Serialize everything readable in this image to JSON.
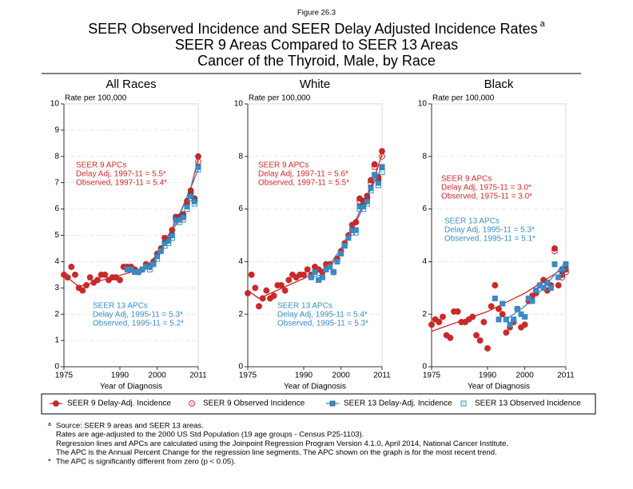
{
  "figure_label": "Figure 26.3",
  "title_lines": [
    "SEER Observed Incidence and SEER Delay Adjusted Incidence Rates",
    "SEER 9 Areas Compared to SEER 13 Areas",
    "Cancer of the Thyroid, Male, by Race"
  ],
  "title_mark": "a",
  "footnotes": [
    {
      "mark": "a",
      "lines": [
        "Source: SEER 9 areas and SEER 13 areas.",
        "Rates are age-adjusted to the 2000 US Std Population (19 age groups - Census P25-1103).",
        "Regression lines and APCs are calculated using the Joinpoint Regression Program Version 4.1.0, April 2014, National Cancer Institute.",
        "The APC is the Annual Percent Change for the regression line segments. The APC shown on the graph is for the most recent trend."
      ]
    },
    {
      "mark": "*",
      "lines": [
        "The APC is significantly different from zero (p < 0.05)."
      ]
    }
  ],
  "chart_data": [
    {
      "type": "scatter",
      "title": "All Races",
      "y_label": "Rate per 100,000",
      "x_label": "Year of Diagnosis",
      "xlim": [
        1975,
        2011
      ],
      "xticks": [
        1975,
        1990,
        2000,
        2011
      ],
      "ylim": [
        0,
        10
      ],
      "yticks": [
        0,
        1,
        2,
        3,
        4,
        5,
        6,
        7,
        8,
        9,
        10
      ],
      "grid": true,
      "x": [
        1975,
        1976,
        1977,
        1978,
        1979,
        1980,
        1981,
        1982,
        1983,
        1984,
        1985,
        1986,
        1987,
        1988,
        1989,
        1990,
        1991,
        1992,
        1993,
        1994,
        1995,
        1996,
        1997,
        1998,
        1999,
        2000,
        2001,
        2002,
        2003,
        2004,
        2005,
        2006,
        2007,
        2008,
        2009,
        2010,
        2011
      ],
      "series": [
        {
          "name": "SEER 9 Delay-Adj. Incidence",
          "color": "#cc2a2a",
          "marker": "circle-filled",
          "values": [
            3.5,
            3.4,
            3.8,
            3.5,
            3.0,
            2.9,
            3.1,
            3.4,
            3.2,
            3.3,
            3.5,
            3.5,
            3.3,
            3.4,
            3.4,
            3.3,
            3.8,
            3.8,
            3.8,
            3.7,
            3.6,
            3.7,
            3.9,
            3.8,
            4.0,
            4.3,
            4.5,
            4.9,
            4.8,
            5.2,
            5.7,
            5.7,
            5.8,
            6.3,
            6.7,
            6.4,
            8.0
          ],
          "trend": {
            "x": [
              1975,
              1979,
              1997,
              2000,
              2003,
              2006,
              2009,
              2011
            ],
            "values": [
              3.5,
              3.05,
              3.75,
              4.3,
              5.0,
              5.8,
              6.8,
              7.9
            ]
          }
        },
        {
          "name": "SEER 9 Observed Incidence",
          "color": "#cc2a2a",
          "marker": "circle-open",
          "values": [
            3.5,
            3.4,
            3.8,
            3.5,
            3.0,
            2.9,
            3.1,
            3.4,
            3.2,
            3.3,
            3.5,
            3.5,
            3.3,
            3.4,
            3.4,
            3.3,
            3.8,
            3.8,
            3.8,
            3.7,
            3.6,
            3.7,
            3.9,
            3.8,
            4.0,
            4.3,
            4.5,
            4.9,
            4.8,
            5.2,
            5.6,
            5.6,
            5.7,
            6.2,
            6.6,
            6.3,
            7.8
          ]
        },
        {
          "name": "SEER 13 Delay-Adj. Incidence",
          "color": "#3b8cc6",
          "marker": "square-filled",
          "values": [
            null,
            null,
            null,
            null,
            null,
            null,
            null,
            null,
            null,
            null,
            null,
            null,
            null,
            null,
            null,
            null,
            null,
            3.7,
            3.7,
            3.6,
            3.6,
            3.7,
            3.8,
            3.8,
            3.9,
            4.2,
            4.4,
            4.7,
            4.8,
            5.0,
            5.6,
            5.6,
            5.7,
            6.1,
            6.5,
            6.3,
            7.6
          ],
          "trend": {
            "x": [
              1992,
              1995,
              2000,
              2005,
              2011
            ],
            "values": [
              3.65,
              3.6,
              4.2,
              5.4,
              7.5
            ]
          }
        },
        {
          "name": "SEER 13 Observed Incidence",
          "color": "#3b8cc6",
          "marker": "square-open",
          "values": [
            null,
            null,
            null,
            null,
            null,
            null,
            null,
            null,
            null,
            null,
            null,
            null,
            null,
            null,
            null,
            null,
            null,
            3.7,
            3.7,
            3.6,
            3.6,
            3.7,
            3.8,
            3.7,
            3.9,
            4.1,
            4.4,
            4.6,
            4.7,
            4.9,
            5.5,
            5.5,
            5.6,
            6.0,
            6.4,
            6.2,
            7.5
          ]
        }
      ],
      "annotations": [
        {
          "color": "#cc2a2a",
          "lines": [
            "SEER 9 APCs",
            "Delay Adj, 1997-11 = 5.5*",
            "Observed, 1997-11 = 5.4*"
          ]
        },
        {
          "color": "#3b8cc6",
          "lines": [
            "SEER 13 APCs",
            "Delay Adj, 1995-11 = 5.3*",
            "Observed, 1995-11 = 5.2*"
          ]
        }
      ]
    },
    {
      "type": "scatter",
      "title": "White",
      "y_label": "Rate per 100,000",
      "x_label": "Year of Diagnosis",
      "xlim": [
        1975,
        2011
      ],
      "xticks": [
        1975,
        1990,
        2000,
        2011
      ],
      "ylim": [
        0,
        10
      ],
      "yticks": [
        0,
        2,
        4,
        6,
        8,
        10
      ],
      "grid": true,
      "x": [
        1975,
        1976,
        1977,
        1978,
        1979,
        1980,
        1981,
        1982,
        1983,
        1984,
        1985,
        1986,
        1987,
        1988,
        1989,
        1990,
        1991,
        1992,
        1993,
        1994,
        1995,
        1996,
        1997,
        1998,
        1999,
        2000,
        2001,
        2002,
        2003,
        2004,
        2005,
        2006,
        2007,
        2008,
        2009,
        2010,
        2011
      ],
      "series": [
        {
          "name": "SEER 9 Delay-Adj. Incidence",
          "color": "#cc2a2a",
          "marker": "circle-filled",
          "values": [
            2.8,
            3.5,
            3.0,
            2.3,
            2.6,
            2.9,
            2.6,
            2.7,
            3.1,
            3.1,
            2.9,
            3.3,
            3.5,
            3.4,
            3.5,
            3.5,
            3.7,
            3.5,
            3.8,
            3.7,
            3.6,
            3.9,
            3.9,
            3.6,
            4.1,
            4.4,
            4.7,
            5.0,
            5.4,
            5.5,
            6.4,
            6.3,
            6.5,
            7.1,
            7.7,
            7.2,
            8.2
          ],
          "trend": {
            "x": [
              1975,
              1978,
              1997,
              2000,
              2003,
              2006,
              2009,
              2011
            ],
            "values": [
              2.9,
              2.6,
              3.8,
              4.4,
              5.2,
              6.1,
              7.2,
              8.1
            ]
          }
        },
        {
          "name": "SEER 9 Observed Incidence",
          "color": "#cc2a2a",
          "marker": "circle-open",
          "values": [
            2.8,
            3.5,
            3.0,
            2.3,
            2.6,
            2.9,
            2.6,
            2.7,
            3.1,
            3.1,
            2.9,
            3.3,
            3.5,
            3.4,
            3.5,
            3.5,
            3.7,
            3.5,
            3.8,
            3.7,
            3.6,
            3.9,
            3.9,
            3.6,
            4.1,
            4.4,
            4.7,
            5.0,
            5.4,
            5.5,
            6.3,
            6.2,
            6.4,
            7.0,
            7.6,
            7.1,
            8.0
          ]
        },
        {
          "name": "SEER 13 Delay-Adj. Incidence",
          "color": "#3b8cc6",
          "marker": "square-filled",
          "values": [
            null,
            null,
            null,
            null,
            null,
            null,
            null,
            null,
            null,
            null,
            null,
            null,
            null,
            null,
            null,
            null,
            null,
            3.4,
            3.6,
            3.3,
            3.4,
            3.7,
            3.8,
            3.6,
            4.0,
            4.3,
            4.6,
            4.9,
            5.2,
            5.2,
            6.1,
            6.1,
            6.3,
            6.8,
            7.3,
            7.0,
            7.6
          ],
          "trend": {
            "x": [
              1992,
              1995,
              2000,
              2005,
              2011
            ],
            "values": [
              3.4,
              3.5,
              4.5,
              5.9,
              7.6
            ]
          }
        },
        {
          "name": "SEER 13 Observed Incidence",
          "color": "#3b8cc6",
          "marker": "square-open",
          "values": [
            null,
            null,
            null,
            null,
            null,
            null,
            null,
            null,
            null,
            null,
            null,
            null,
            null,
            null,
            null,
            null,
            null,
            3.4,
            3.6,
            3.3,
            3.4,
            3.7,
            3.8,
            3.6,
            4.0,
            4.3,
            4.6,
            4.9,
            5.1,
            5.1,
            6.0,
            6.0,
            6.2,
            6.7,
            7.2,
            6.9,
            7.4
          ]
        }
      ],
      "annotations": [
        {
          "color": "#cc2a2a",
          "lines": [
            "SEER 9 APCs",
            "Delay Adj, 1997-11 = 5.6*",
            "Observed, 1997-11 = 5.5*"
          ]
        },
        {
          "color": "#3b8cc6",
          "lines": [
            "SEER 13 APCs",
            "Delay Adj, 1995-11 = 5.4*",
            "Observed, 1995-11 = 5.3*"
          ]
        }
      ]
    },
    {
      "type": "scatter",
      "title": "Black",
      "y_label": "Rate per 100,000",
      "x_label": "Year of Diagnosis",
      "xlim": [
        1975,
        2011
      ],
      "xticks": [
        1975,
        1990,
        2000,
        2011
      ],
      "ylim": [
        0,
        10
      ],
      "yticks": [
        0,
        2,
        4,
        6,
        8,
        10
      ],
      "grid": true,
      "x": [
        1975,
        1976,
        1977,
        1978,
        1979,
        1980,
        1981,
        1982,
        1983,
        1984,
        1985,
        1986,
        1987,
        1988,
        1989,
        1990,
        1991,
        1992,
        1993,
        1994,
        1995,
        1996,
        1997,
        1998,
        1999,
        2000,
        2001,
        2002,
        2003,
        2004,
        2005,
        2006,
        2007,
        2008,
        2009,
        2010,
        2011
      ],
      "series": [
        {
          "name": "SEER 9 Delay-Adj. Incidence",
          "color": "#cc2a2a",
          "marker": "circle-filled",
          "values": [
            1.6,
            1.8,
            1.7,
            1.9,
            1.2,
            1.1,
            2.1,
            2.1,
            1.7,
            1.7,
            1.8,
            1.9,
            1.2,
            1.0,
            1.7,
            0.7,
            2.3,
            3.1,
            2.2,
            2.0,
            1.3,
            1.5,
            1.7,
            2.2,
            1.5,
            1.6,
            2.5,
            2.7,
            2.8,
            3.1,
            3.3,
            2.9,
            3.1,
            4.5,
            3.1,
            3.5,
            3.7
          ],
          "trend": {
            "x": [
              1975,
              1990,
              2000,
              2011
            ],
            "values": [
              1.35,
              2.1,
              2.8,
              3.8
            ]
          }
        },
        {
          "name": "SEER 9 Observed Incidence",
          "color": "#cc2a2a",
          "marker": "circle-open",
          "values": [
            1.6,
            1.8,
            1.7,
            1.9,
            1.2,
            1.1,
            2.1,
            2.1,
            1.7,
            1.7,
            1.8,
            1.9,
            1.2,
            1.0,
            1.7,
            0.7,
            2.3,
            3.1,
            2.2,
            2.0,
            1.3,
            1.5,
            1.7,
            2.2,
            1.5,
            1.6,
            2.5,
            2.7,
            2.8,
            3.1,
            3.3,
            2.9,
            3.1,
            4.4,
            3.1,
            3.4,
            3.6
          ]
        },
        {
          "name": "SEER 13 Delay-Adj. Incidence",
          "color": "#3b8cc6",
          "marker": "square-filled",
          "values": [
            null,
            null,
            null,
            null,
            null,
            null,
            null,
            null,
            null,
            null,
            null,
            null,
            null,
            null,
            null,
            null,
            null,
            2.6,
            1.8,
            2.4,
            1.8,
            1.6,
            1.8,
            2.2,
            2.0,
            1.9,
            2.6,
            2.5,
            2.9,
            3.1,
            3.0,
            3.2,
            3.0,
            3.9,
            3.4,
            3.7,
            3.9
          ],
          "trend": {
            "x": [
              1995,
              2000,
              2005,
              2011
            ],
            "values": [
              1.8,
              2.3,
              3.0,
              4.0
            ]
          }
        },
        {
          "name": "SEER 13 Observed Incidence",
          "color": "#3b8cc6",
          "marker": "square-open",
          "values": [
            null,
            null,
            null,
            null,
            null,
            null,
            null,
            null,
            null,
            null,
            null,
            null,
            null,
            null,
            null,
            null,
            null,
            2.6,
            1.8,
            2.4,
            1.8,
            1.6,
            1.8,
            2.2,
            2.0,
            1.9,
            2.6,
            2.5,
            2.9,
            3.1,
            3.0,
            3.1,
            3.0,
            3.9,
            3.4,
            3.6,
            3.8
          ]
        }
      ],
      "annotations": [
        {
          "color": "#cc2a2a",
          "lines": [
            "SEER 9 APCs",
            "Delay Adj, 1975-11 = 3.0*",
            "Observed, 1975-11 = 3.0*"
          ]
        },
        {
          "color": "#3b8cc6",
          "lines": [
            "SEER 13 APCs",
            "Delay Adj, 1995-11 = 5.3*",
            "Observed, 1995-11 = 5.1*"
          ]
        }
      ]
    }
  ]
}
